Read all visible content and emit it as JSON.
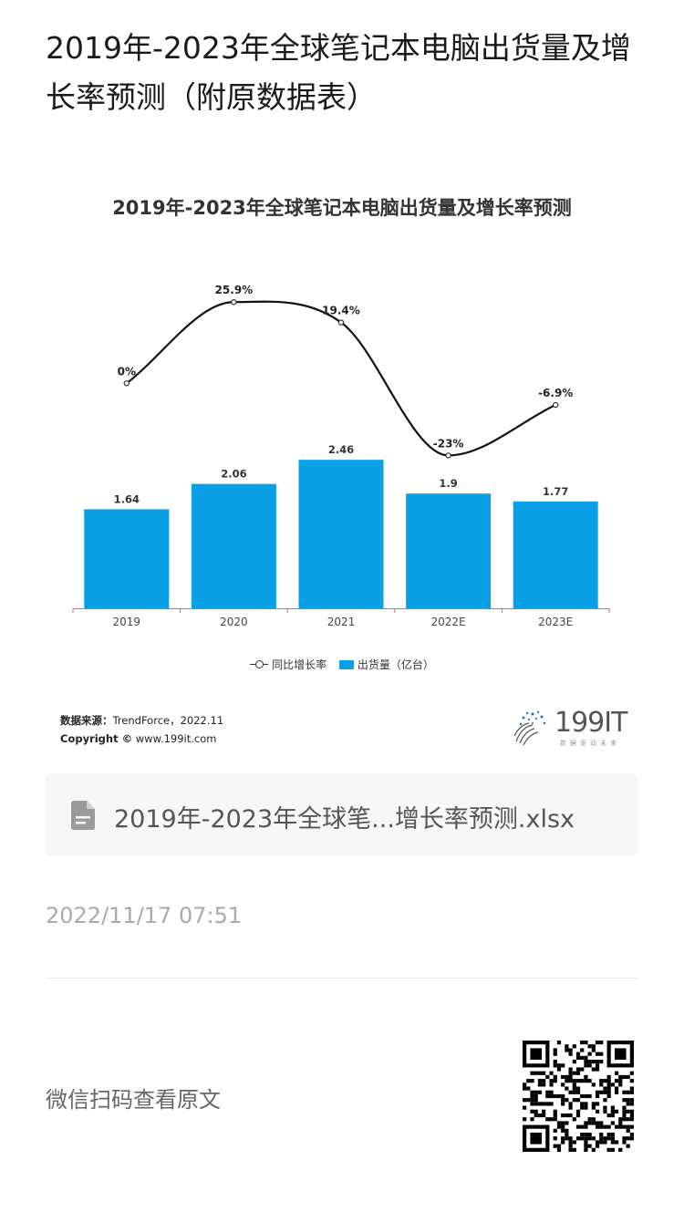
{
  "page": {
    "title": "2019年-2023年全球笔记本电脑出货量及增长率预测（附原数据表）",
    "file_name": "2019年-2023年全球笔...增长率预测.xlsx",
    "timestamp": "2022/11/17 07:51",
    "scan_text": "微信扫码查看原文"
  },
  "chart_data": {
    "type": "bar",
    "title": "2019年-2023年全球笔记本电脑出货量及增长率预测",
    "categories": [
      "2019",
      "2020",
      "2021",
      "2022E",
      "2023E"
    ],
    "series": [
      {
        "name": "出货量（亿台）",
        "type": "bar",
        "values": [
          1.64,
          2.06,
          2.46,
          1.9,
          1.77
        ],
        "labels": [
          "1.64",
          "2.06",
          "2.46",
          "1.9",
          "1.77"
        ],
        "color": "#0aa0e6"
      },
      {
        "name": "同比增长率",
        "type": "line",
        "values": [
          0,
          25.9,
          19.4,
          -23,
          -6.9
        ],
        "labels": [
          "0%",
          "25.9%",
          "19.4%",
          "-23%",
          "-6.9%"
        ],
        "color": "#111111"
      }
    ],
    "legend": "bottom",
    "grid": false
  },
  "source": {
    "label": "数据来源：",
    "text": "TrendForce，2022.11",
    "copyright_label": "Copyright ©",
    "copyright_text": "www.199it.com"
  },
  "brand": {
    "name": "199IT",
    "tagline": "数据驱动未来"
  },
  "icons": {
    "file": "file-document-icon",
    "qr": "qr-code-icon",
    "logo": "brand-logo-icon"
  }
}
